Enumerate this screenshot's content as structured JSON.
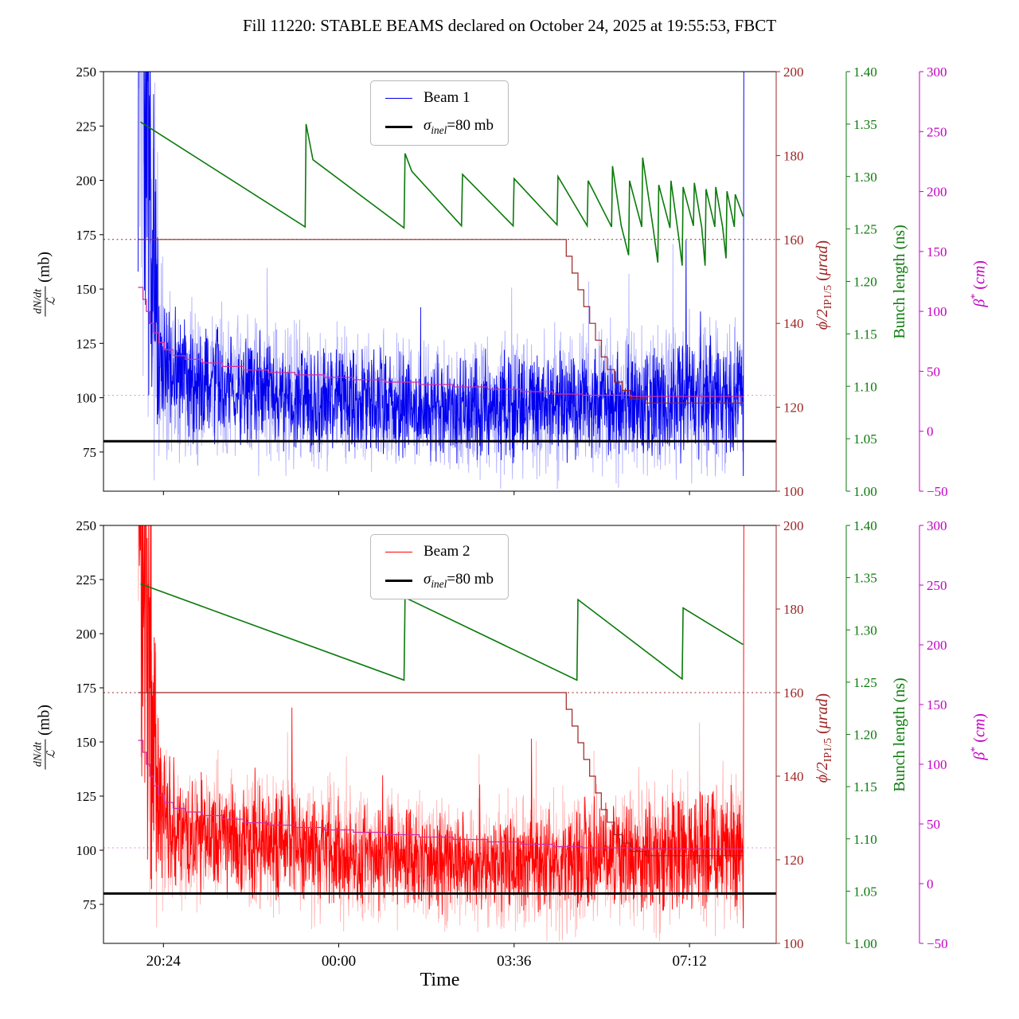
{
  "chart_data": {
    "type": "line",
    "title": "Fill 11220: STABLE BEAMS declared on October 24, 2025 at 19:55:53, FBCT",
    "xlabel": "Time",
    "x_range": [
      0.17,
      13.98
    ],
    "x_ticks": [
      {
        "t": 1.4,
        "label": "20:24"
      },
      {
        "t": 5.0,
        "label": "00:00"
      },
      {
        "t": 8.6,
        "label": "03:36"
      },
      {
        "t": 12.2,
        "label": "07:12"
      }
    ],
    "axes": {
      "cross_section": {
        "range": [
          57,
          250
        ],
        "ticks": [
          75,
          100,
          125,
          150,
          175,
          200,
          225,
          250
        ],
        "tick_labels": [
          "75",
          "100",
          "125",
          "150",
          "175",
          "200",
          "225",
          "250"
        ],
        "color": "#000000",
        "label_parts": {
          "num": "dN/dt",
          "den": "ℒ",
          "unit": " (mb)"
        }
      },
      "crossing_angle": {
        "range": [
          100,
          200
        ],
        "ticks": [
          100,
          120,
          140,
          160,
          180,
          200
        ],
        "tick_labels": [
          "100",
          "120",
          "140",
          "160",
          "180",
          "200"
        ],
        "color": "#9d2424",
        "label_parts": {
          "main": "ϕ/2",
          "sub": "IP1/5",
          "u1": " (",
          "u2": "μrad",
          "u3": ")"
        }
      },
      "bunch_length": {
        "range": [
          1.0,
          1.4
        ],
        "ticks": [
          1.0,
          1.05,
          1.1,
          1.15,
          1.2,
          1.25,
          1.3,
          1.35,
          1.4
        ],
        "tick_labels": [
          "1.00",
          "1.05",
          "1.10",
          "1.15",
          "1.20",
          "1.25",
          "1.30",
          "1.35",
          "1.40"
        ],
        "color": "#0b7a0b",
        "label": "Bunch length (ns)"
      },
      "beta_star": {
        "range": [
          -50,
          300
        ],
        "ticks": [
          -50,
          0,
          50,
          100,
          150,
          200,
          250,
          300
        ],
        "tick_labels": [
          "−50",
          "0",
          "50",
          "100",
          "150",
          "200",
          "250",
          "300"
        ],
        "color": "#c400c4",
        "label_parts": {
          "main": "β",
          "sup": "*",
          "u1": " (",
          "u2": "cm",
          "u3": ")"
        }
      }
    },
    "panels": [
      {
        "name": "beam1",
        "legend": [
          {
            "color": "#0000ee",
            "lw": 1.5,
            "label": "Beam 1"
          },
          {
            "color": "#000000",
            "lw": 3.5,
            "parts": [
              {
                "t": "σ",
                "i": 1
              },
              {
                "t": "inel",
                "i": 1,
                "sub": 1
              },
              {
                "t": "=80 mb"
              }
            ]
          }
        ],
        "sigma_line": 80,
        "noise": {
          "seed_light": 11,
          "seed_dark": 23,
          "color_dark": "#0000ee",
          "color_light": "rgba(70,70,255,0.42)",
          "span": [
            0.88,
            13.295
          ],
          "end_t": 13.305,
          "clip": [
            58,
            250
          ],
          "base": [
            [
              0.88,
              330
            ],
            [
              1.0,
              265
            ],
            [
              1.1,
              205
            ],
            [
              1.22,
              152
            ],
            [
              1.35,
              119
            ],
            [
              1.6,
              111
            ],
            [
              2.5,
              106
            ],
            [
              4.0,
              101
            ],
            [
              6.0,
              97
            ],
            [
              8.0,
              94
            ],
            [
              10.0,
              96
            ],
            [
              12.0,
              99
            ],
            [
              13.3,
              101
            ]
          ],
          "amp_light": [
            [
              0.88,
              210
            ],
            [
              1.05,
              165
            ],
            [
              1.2,
              115
            ],
            [
              1.35,
              52
            ],
            [
              1.8,
              42
            ],
            [
              5.0,
              38
            ],
            [
              8.0,
              37
            ],
            [
              10.0,
              41
            ],
            [
              13.3,
              45
            ]
          ],
          "amp_dark": [
            [
              0.88,
              205
            ],
            [
              1.05,
              155
            ],
            [
              1.2,
              105
            ],
            [
              1.35,
              38
            ],
            [
              1.8,
              31
            ],
            [
              5.0,
              27
            ],
            [
              8.0,
              26
            ],
            [
              10.0,
              29
            ],
            [
              13.3,
              32
            ]
          ]
        },
        "crossing_angle_ref": 160,
        "beta_star_ref": 30,
        "bunch_length": [
          [
            0.93,
            1.352
          ],
          [
            4.31,
            1.252
          ],
          [
            4.33,
            1.35
          ],
          [
            4.47,
            1.316
          ],
          [
            6.34,
            1.251
          ],
          [
            6.36,
            1.322
          ],
          [
            6.5,
            1.305
          ],
          [
            7.52,
            1.253
          ],
          [
            7.54,
            1.302
          ],
          [
            8.58,
            1.253
          ],
          [
            8.6,
            1.298
          ],
          [
            9.48,
            1.254
          ],
          [
            9.5,
            1.3
          ],
          [
            10.1,
            1.253
          ],
          [
            10.12,
            1.296
          ],
          [
            10.6,
            1.252
          ],
          [
            10.62,
            1.31
          ],
          [
            10.8,
            1.253
          ],
          [
            10.95,
            1.225
          ],
          [
            10.97,
            1.296
          ],
          [
            11.22,
            1.252
          ],
          [
            11.24,
            1.318
          ],
          [
            11.45,
            1.252
          ],
          [
            11.55,
            1.218
          ],
          [
            11.57,
            1.292
          ],
          [
            11.8,
            1.251
          ],
          [
            11.82,
            1.296
          ],
          [
            11.98,
            1.242
          ],
          [
            12.05,
            1.215
          ],
          [
            12.07,
            1.29
          ],
          [
            12.28,
            1.253
          ],
          [
            12.3,
            1.294
          ],
          [
            12.45,
            1.252
          ],
          [
            12.52,
            1.215
          ],
          [
            12.54,
            1.288
          ],
          [
            12.72,
            1.252
          ],
          [
            12.74,
            1.29
          ],
          [
            12.88,
            1.252
          ],
          [
            12.95,
            1.222
          ],
          [
            12.97,
            1.286
          ],
          [
            13.12,
            1.252
          ],
          [
            13.14,
            1.283
          ],
          [
            13.3,
            1.262
          ]
        ],
        "crossing_angle_steps": [
          [
            0.88,
            160
          ],
          [
            9.55,
            160
          ],
          [
            9.67,
            156
          ],
          [
            9.79,
            152
          ],
          [
            9.91,
            148
          ],
          [
            10.03,
            144
          ],
          [
            10.15,
            140
          ],
          [
            10.27,
            136
          ],
          [
            10.39,
            132
          ],
          [
            10.51,
            129
          ],
          [
            10.66,
            126
          ],
          [
            10.82,
            124
          ],
          [
            10.98,
            122
          ],
          [
            11.3,
            121
          ],
          [
            13.31,
            121
          ]
        ],
        "beta_star_steps": [
          [
            0.88,
            120
          ],
          [
            0.98,
            110
          ],
          [
            1.05,
            100
          ],
          [
            1.12,
            90
          ],
          [
            1.2,
            82
          ],
          [
            1.3,
            74
          ],
          [
            1.42,
            68
          ],
          [
            1.6,
            63
          ],
          [
            1.85,
            60
          ],
          [
            2.2,
            57
          ],
          [
            2.6,
            54
          ],
          [
            3.05,
            51
          ],
          [
            3.55,
            49
          ],
          [
            4.1,
            47
          ],
          [
            4.7,
            45
          ],
          [
            5.3,
            43
          ],
          [
            5.95,
            41
          ],
          [
            6.65,
            39
          ],
          [
            7.35,
            37
          ],
          [
            8.05,
            35
          ],
          [
            8.75,
            33
          ],
          [
            9.4,
            31
          ],
          [
            10.0,
            30
          ],
          [
            11.0,
            29
          ],
          [
            13.31,
            29
          ]
        ]
      },
      {
        "name": "beam2",
        "legend": [
          {
            "color": "#ff0000",
            "lw": 1.5,
            "label": "Beam 2"
          },
          {
            "color": "#000000",
            "lw": 3.5,
            "parts": [
              {
                "t": "σ",
                "i": 1
              },
              {
                "t": "inel",
                "i": 1,
                "sub": 1
              },
              {
                "t": "=80 mb"
              }
            ]
          }
        ],
        "sigma_line": 80,
        "noise": {
          "seed_light": 31,
          "seed_dark": 47,
          "color_dark": "#ff0000",
          "color_light": "rgba(255,70,70,0.40)",
          "span": [
            0.88,
            13.295
          ],
          "end_t": 13.305,
          "clip": [
            58,
            250
          ],
          "base": [
            [
              0.88,
              330
            ],
            [
              1.0,
              265
            ],
            [
              1.1,
              205
            ],
            [
              1.22,
              152
            ],
            [
              1.35,
              119
            ],
            [
              1.6,
              111
            ],
            [
              2.5,
              106
            ],
            [
              4.0,
              101
            ],
            [
              6.0,
              97
            ],
            [
              8.0,
              94
            ],
            [
              10.0,
              96
            ],
            [
              12.0,
              99
            ],
            [
              13.3,
              101
            ]
          ],
          "amp_light": [
            [
              0.88,
              210
            ],
            [
              1.05,
              165
            ],
            [
              1.2,
              115
            ],
            [
              1.35,
              52
            ],
            [
              1.8,
              42
            ],
            [
              5.0,
              38
            ],
            [
              8.0,
              37
            ],
            [
              10.0,
              41
            ],
            [
              13.3,
              45
            ]
          ],
          "amp_dark": [
            [
              0.88,
              205
            ],
            [
              1.05,
              155
            ],
            [
              1.2,
              105
            ],
            [
              1.35,
              38
            ],
            [
              1.8,
              31
            ],
            [
              5.0,
              27
            ],
            [
              8.0,
              26
            ],
            [
              10.0,
              29
            ],
            [
              13.3,
              32
            ]
          ]
        },
        "crossing_angle_ref": 160,
        "beta_star_ref": 30,
        "bunch_length": [
          [
            0.93,
            1.344
          ],
          [
            6.34,
            1.252
          ],
          [
            6.36,
            1.331
          ],
          [
            9.89,
            1.252
          ],
          [
            9.91,
            1.329
          ],
          [
            12.05,
            1.253
          ],
          [
            12.07,
            1.321
          ],
          [
            13.3,
            1.286
          ]
        ],
        "crossing_angle_steps": [
          [
            0.88,
            160
          ],
          [
            9.55,
            160
          ],
          [
            9.67,
            156
          ],
          [
            9.79,
            152
          ],
          [
            9.91,
            148
          ],
          [
            10.03,
            144
          ],
          [
            10.15,
            140
          ],
          [
            10.27,
            136
          ],
          [
            10.39,
            132
          ],
          [
            10.51,
            129
          ],
          [
            10.66,
            126
          ],
          [
            10.82,
            124
          ],
          [
            10.98,
            122
          ],
          [
            11.3,
            121
          ],
          [
            13.31,
            121
          ]
        ],
        "beta_star_steps": [
          [
            0.88,
            120
          ],
          [
            0.98,
            110
          ],
          [
            1.05,
            100
          ],
          [
            1.12,
            90
          ],
          [
            1.2,
            82
          ],
          [
            1.3,
            74
          ],
          [
            1.42,
            68
          ],
          [
            1.6,
            63
          ],
          [
            1.85,
            60
          ],
          [
            2.2,
            57
          ],
          [
            2.6,
            54
          ],
          [
            3.05,
            51
          ],
          [
            3.55,
            49
          ],
          [
            4.1,
            47
          ],
          [
            4.7,
            45
          ],
          [
            5.3,
            43
          ],
          [
            5.95,
            41
          ],
          [
            6.65,
            39
          ],
          [
            7.35,
            37
          ],
          [
            8.05,
            35
          ],
          [
            8.75,
            33
          ],
          [
            9.4,
            31
          ],
          [
            10.0,
            30
          ],
          [
            11.0,
            29
          ],
          [
            13.31,
            29
          ]
        ]
      }
    ]
  }
}
